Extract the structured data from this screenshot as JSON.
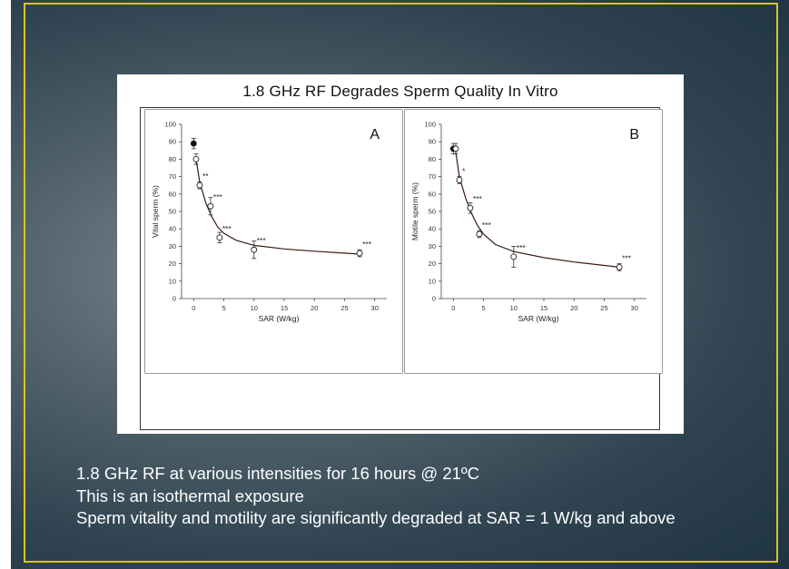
{
  "slide": {
    "figure_title": "1.8 GHz RF Degrades Sperm Quality In Vitro",
    "bullets": [
      "1.8 GHz RF at various intensities for 16 hours @ 21ºC",
      "This is an isothermal exposure",
      "Sperm vitality and motility are significantly degraded at SAR = 1 W/kg and above"
    ],
    "colors": {
      "frame": "#d8c51e",
      "text": "#ffffff",
      "curve": "#3a1a12"
    }
  },
  "chart_data": [
    {
      "type": "scatter",
      "panel_label": "A",
      "xlabel": "SAR (W/kg)",
      "ylabel": "Vital sperm (%)",
      "xlim": [
        -2,
        32
      ],
      "ylim": [
        0,
        100
      ],
      "xticks": [
        0,
        5,
        10,
        15,
        20,
        25,
        30
      ],
      "yticks": [
        0,
        10,
        20,
        30,
        40,
        50,
        60,
        70,
        80,
        90,
        100
      ],
      "points": [
        {
          "x": 0,
          "y": 89,
          "err": 3,
          "filled": true,
          "sig": ""
        },
        {
          "x": 0.4,
          "y": 80,
          "err": 3,
          "filled": false,
          "sig": ""
        },
        {
          "x": 1,
          "y": 65,
          "err": 2,
          "filled": false,
          "sig": "**"
        },
        {
          "x": 2.8,
          "y": 53,
          "err": 5,
          "filled": false,
          "sig": "***"
        },
        {
          "x": 4.3,
          "y": 35,
          "err": 3,
          "filled": false,
          "sig": "***"
        },
        {
          "x": 10,
          "y": 28,
          "err": 5,
          "filled": false,
          "sig": "***"
        },
        {
          "x": 27.5,
          "y": 26,
          "err": 2,
          "filled": false,
          "sig": "***"
        }
      ],
      "fit_curve": [
        [
          0.4,
          80
        ],
        [
          1,
          67
        ],
        [
          2,
          55
        ],
        [
          3,
          47
        ],
        [
          4,
          41
        ],
        [
          5,
          37.5
        ],
        [
          7,
          33.5
        ],
        [
          10,
          30.5
        ],
        [
          15,
          28.5
        ],
        [
          20,
          27.2
        ],
        [
          27.5,
          25.5
        ]
      ]
    },
    {
      "type": "scatter",
      "panel_label": "B",
      "xlabel": "SAR (W/kg)",
      "ylabel": "Motile sperm (%)",
      "xlim": [
        -2,
        32
      ],
      "ylim": [
        0,
        100
      ],
      "xticks": [
        0,
        5,
        10,
        15,
        20,
        25,
        30
      ],
      "yticks": [
        0,
        10,
        20,
        30,
        40,
        50,
        60,
        70,
        80,
        90,
        100
      ],
      "points": [
        {
          "x": 0,
          "y": 86,
          "err": 3,
          "filled": true,
          "sig": ""
        },
        {
          "x": 0.4,
          "y": 86,
          "err": 3,
          "filled": false,
          "sig": ""
        },
        {
          "x": 1,
          "y": 68,
          "err": 2,
          "filled": false,
          "sig": "*"
        },
        {
          "x": 2.8,
          "y": 52,
          "err": 3,
          "filled": false,
          "sig": "***"
        },
        {
          "x": 4.3,
          "y": 37,
          "err": 2,
          "filled": false,
          "sig": "***"
        },
        {
          "x": 10,
          "y": 24,
          "err": 6,
          "filled": false,
          "sig": "***"
        },
        {
          "x": 27.5,
          "y": 18,
          "err": 2,
          "filled": false,
          "sig": "***"
        }
      ],
      "fit_curve": [
        [
          0.4,
          84
        ],
        [
          1,
          70
        ],
        [
          2,
          58
        ],
        [
          3,
          49
        ],
        [
          4,
          42
        ],
        [
          5,
          37
        ],
        [
          7,
          31
        ],
        [
          10,
          27
        ],
        [
          15,
          23.5
        ],
        [
          20,
          21
        ],
        [
          27.5,
          18
        ]
      ]
    }
  ]
}
